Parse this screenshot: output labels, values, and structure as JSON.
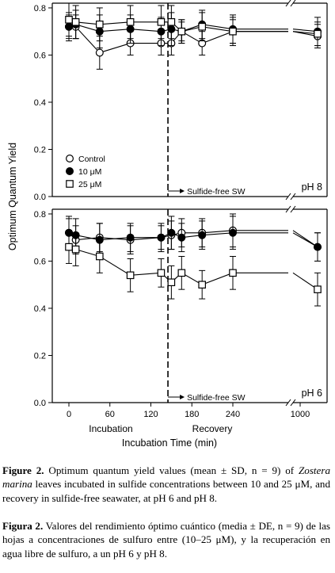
{
  "chart_data": {
    "type": "scatter",
    "ylabel": "Optimum Quantum Yield",
    "xlabel": "Incubation Time (min)",
    "x_ticks": [
      0,
      60,
      120,
      180,
      240,
      1000
    ],
    "y_ticks": [
      "0.0",
      "0.2",
      "0.4",
      "0.6",
      "0.8"
    ],
    "ylim": [
      0,
      0.82
    ],
    "x_axis_break": "between 260 and 990 min",
    "phase_labels": {
      "incubation": "Incubation",
      "recovery": "Recovery"
    },
    "transition_x": 145,
    "transition_label": "Sulfide-free SW",
    "legend": [
      {
        "key": "control",
        "label": "Control",
        "marker": "open-circle"
      },
      {
        "key": "uM10",
        "label": "10 μM",
        "marker": "filled-circle"
      },
      {
        "key": "uM25",
        "label": "25 μM",
        "marker": "open-square"
      }
    ],
    "panels": [
      {
        "label": "pH 8",
        "series": [
          {
            "key": "control",
            "points": [
              [
                0,
                0.72,
                0.05
              ],
              [
                10,
                0.72,
                0.05
              ],
              [
                45,
                0.61,
                0.07
              ],
              [
                90,
                0.65,
                0.05
              ],
              [
                135,
                0.65,
                0.05
              ],
              [
                150,
                0.65,
                0.05
              ],
              [
                165,
                0.7,
                0.04
              ],
              [
                195,
                0.65,
                0.05
              ],
              [
                240,
                0.7,
                0.06
              ],
              [
                1200,
                0.68,
                0.05
              ]
            ]
          },
          {
            "key": "uM10",
            "points": [
              [
                0,
                0.72,
                0.06
              ],
              [
                10,
                0.73,
                0.06
              ],
              [
                45,
                0.7,
                0.07
              ],
              [
                90,
                0.71,
                0.06
              ],
              [
                135,
                0.7,
                0.06
              ],
              [
                150,
                0.71,
                0.07
              ],
              [
                165,
                0.7,
                0.05
              ],
              [
                195,
                0.73,
                0.06
              ],
              [
                240,
                0.71,
                0.06
              ],
              [
                1200,
                0.7,
                0.06
              ]
            ]
          },
          {
            "key": "uM25",
            "points": [
              [
                0,
                0.75,
                0.07
              ],
              [
                10,
                0.74,
                0.07
              ],
              [
                45,
                0.73,
                0.07
              ],
              [
                90,
                0.74,
                0.07
              ],
              [
                135,
                0.74,
                0.07
              ],
              [
                150,
                0.74,
                0.07
              ],
              [
                165,
                0.7,
                0.05
              ],
              [
                195,
                0.72,
                0.06
              ],
              [
                240,
                0.7,
                0.05
              ],
              [
                1200,
                0.69,
                0.05
              ]
            ]
          }
        ]
      },
      {
        "label": "pH 6",
        "series": [
          {
            "key": "control",
            "points": [
              [
                0,
                0.72,
                0.06
              ],
              [
                10,
                0.69,
                0.06
              ],
              [
                45,
                0.7,
                0.06
              ],
              [
                90,
                0.69,
                0.06
              ],
              [
                135,
                0.7,
                0.05
              ],
              [
                150,
                0.71,
                0.06
              ],
              [
                165,
                0.72,
                0.06
              ],
              [
                195,
                0.72,
                0.06
              ],
              [
                240,
                0.73,
                0.07
              ],
              [
                1200,
                0.66,
                0.06
              ]
            ]
          },
          {
            "key": "uM10",
            "points": [
              [
                0,
                0.72,
                0.07
              ],
              [
                10,
                0.71,
                0.07
              ],
              [
                45,
                0.69,
                0.07
              ],
              [
                90,
                0.7,
                0.06
              ],
              [
                135,
                0.7,
                0.06
              ],
              [
                150,
                0.72,
                0.07
              ],
              [
                165,
                0.7,
                0.06
              ],
              [
                195,
                0.71,
                0.06
              ],
              [
                240,
                0.72,
                0.07
              ],
              [
                1200,
                0.66,
                0.06
              ]
            ]
          },
          {
            "key": "uM25",
            "points": [
              [
                0,
                0.66,
                0.07
              ],
              [
                10,
                0.65,
                0.07
              ],
              [
                45,
                0.62,
                0.07
              ],
              [
                90,
                0.54,
                0.07
              ],
              [
                135,
                0.55,
                0.06
              ],
              [
                150,
                0.51,
                0.07
              ],
              [
                165,
                0.55,
                0.07
              ],
              [
                195,
                0.5,
                0.06
              ],
              [
                240,
                0.55,
                0.07
              ],
              [
                1200,
                0.48,
                0.07
              ]
            ]
          }
        ]
      }
    ]
  },
  "caption_en": {
    "label": "Figure 2.",
    "part1": " Optimum quantum yield values (mean ± SD, n = 9) of ",
    "species": "Zostera marina",
    "part2": " leaves incubated in sulfide concentrations between 10 and 25 μM, and recovery in sulfide-free seawater, at pH 6 and pH 8."
  },
  "caption_es": {
    "label": "Figura 2.",
    "text": " Valores del rendimiento óptimo cuántico (media ± DE, n = 9) de las hojas a concentraciones de sulfuro entre (10–25 μM), y la recuperación en agua libre de sulfuro, a un pH 6 y pH 8."
  }
}
